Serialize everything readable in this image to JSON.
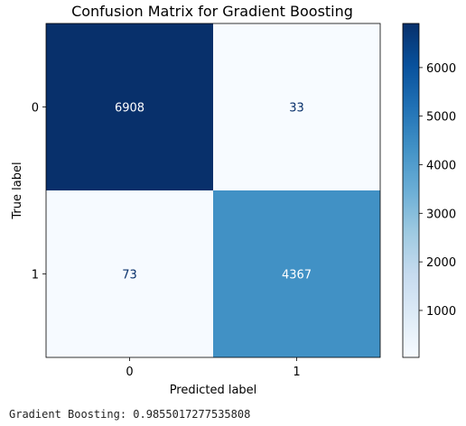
{
  "chart_data": {
    "type": "heatmap",
    "title": "Confusion Matrix for Gradient Boosting",
    "xlabel": "Predicted label",
    "ylabel": "True label",
    "x_categories": [
      "0",
      "1"
    ],
    "y_categories": [
      "0",
      "1"
    ],
    "matrix": [
      [
        6908,
        33
      ],
      [
        73,
        4367
      ]
    ],
    "colormap": "Blues",
    "color_range": [
      33,
      6908
    ],
    "colorbar": {
      "ticks": [
        1000,
        2000,
        3000,
        4000,
        5000,
        6000
      ],
      "tick_labels": [
        "1000",
        "2000",
        "3000",
        "4000",
        "5000",
        "6000"
      ]
    },
    "grid": false,
    "legend": "none"
  },
  "output_text": "Gradient Boosting: 0.9855017277535808"
}
